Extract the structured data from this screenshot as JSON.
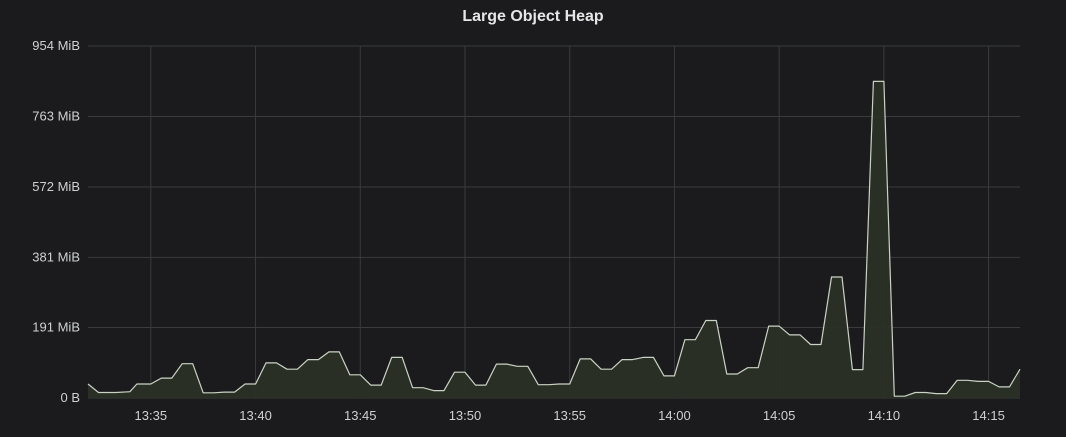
{
  "chart_data": {
    "type": "area",
    "title": "Large Object Heap",
    "y_unit": "MiB",
    "ylim": [
      0,
      954
    ],
    "y_ticks": [
      {
        "value": 0,
        "label": "0 B"
      },
      {
        "value": 191,
        "label": "191 MiB"
      },
      {
        "value": 381,
        "label": "381 MiB"
      },
      {
        "value": 572,
        "label": "572 MiB"
      },
      {
        "value": 763,
        "label": "763 MiB"
      },
      {
        "value": 954,
        "label": "954 MiB"
      }
    ],
    "x_range": [
      "13:32",
      "14:16:30"
    ],
    "x_ticks": [
      "13:35",
      "13:40",
      "13:45",
      "13:50",
      "13:55",
      "14:00",
      "14:05",
      "14:10",
      "14:15"
    ],
    "grid": true,
    "colors": {
      "line": "#c9d3c3",
      "fill": "#2a3026",
      "grid": "#3a3b3d",
      "background": "#1b1b1d"
    },
    "series": [
      {
        "x": [
          "13:32:00",
          "13:32:30",
          "13:33:20",
          "13:34:00",
          "13:34:20",
          "13:35:00",
          "13:35:30",
          "13:36:00",
          "13:36:30",
          "13:37:00",
          "13:37:30",
          "13:38:00",
          "13:38:30",
          "13:39:00",
          "13:39:30",
          "13:40:00",
          "13:40:30",
          "13:41:00",
          "13:41:30",
          "13:42:00",
          "13:42:30",
          "13:43:00",
          "13:43:30",
          "13:44:00",
          "13:44:30",
          "13:45:00",
          "13:45:30",
          "13:46:00",
          "13:46:30",
          "13:47:00",
          "13:47:30",
          "13:48:00",
          "13:48:30",
          "13:49:00",
          "13:49:30",
          "13:50:00",
          "13:50:30",
          "13:51:00",
          "13:51:30",
          "13:52:00",
          "13:52:30",
          "13:53:00",
          "13:53:30",
          "13:54:00",
          "13:54:30",
          "13:55:00",
          "13:55:30",
          "13:56:00",
          "13:56:30",
          "13:57:00",
          "13:57:30",
          "13:58:00",
          "13:58:30",
          "13:59:00",
          "13:59:30",
          "14:00:00",
          "14:00:30",
          "14:01:00",
          "14:01:30",
          "14:02:00",
          "14:02:30",
          "14:03:00",
          "14:03:30",
          "14:04:00",
          "14:04:30",
          "14:05:00",
          "14:05:30",
          "14:06:00",
          "14:06:30",
          "14:07:00",
          "14:07:30",
          "14:08:00",
          "14:08:30",
          "14:09:00",
          "14:09:30",
          "14:10:00",
          "14:10:30",
          "14:11:00",
          "14:11:30",
          "14:12:00",
          "14:12:30",
          "14:13:00",
          "14:13:30",
          "14:14:00",
          "14:14:30",
          "14:15:00",
          "14:15:30",
          "14:16:00",
          "14:16:30"
        ],
        "values": [
          38,
          15,
          15,
          17,
          38,
          38,
          54,
          54,
          93,
          93,
          14,
          14,
          16,
          16,
          38,
          38,
          95,
          95,
          78,
          78,
          104,
          104,
          125,
          125,
          63,
          63,
          35,
          35,
          110,
          110,
          28,
          28,
          20,
          20,
          70,
          70,
          35,
          35,
          92,
          92,
          86,
          86,
          36,
          36,
          38,
          38,
          106,
          106,
          78,
          78,
          104,
          104,
          110,
          110,
          60,
          60,
          158,
          158,
          210,
          210,
          65,
          65,
          82,
          82,
          195,
          195,
          171,
          171,
          145,
          145,
          328,
          328,
          77,
          77,
          858,
          858,
          5,
          5,
          15,
          15,
          12,
          12,
          48,
          48,
          45,
          45,
          30,
          30,
          78
        ]
      }
    ]
  }
}
